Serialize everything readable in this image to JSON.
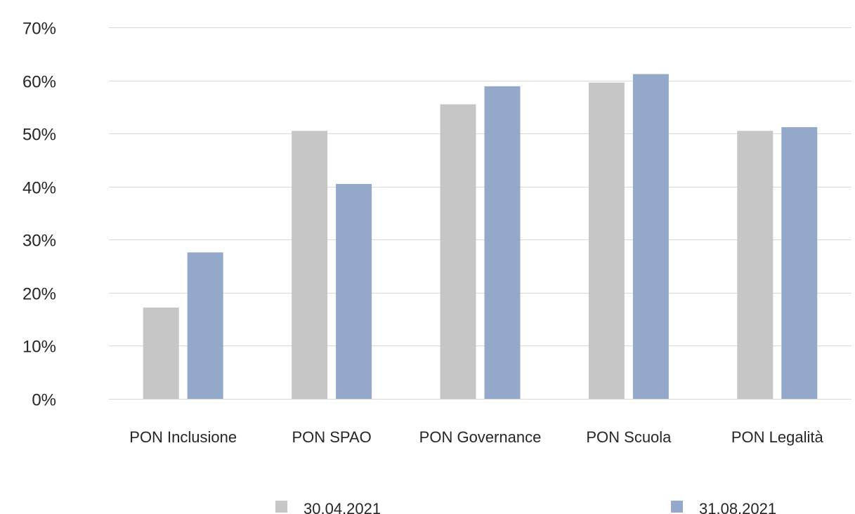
{
  "chart_data": {
    "type": "bar",
    "categories": [
      "PON Inclusione",
      "PON SPAO",
      "PON Governance",
      "PON Scuola",
      "PON Legalità"
    ],
    "series": [
      {
        "name": "30.04.2021",
        "color": "#c6c6c6",
        "values": [
          17.2,
          50.5,
          55.5,
          59.6,
          50.5
        ]
      },
      {
        "name": "31.08.2021",
        "color": "#94a8ca",
        "values": [
          27.6,
          40.5,
          58.9,
          61.2,
          51.2
        ]
      }
    ],
    "y_ticks": [
      "0%",
      "10%",
      "20%",
      "30%",
      "40%",
      "50%",
      "60%",
      "70%"
    ],
    "ylim": [
      0,
      70
    ],
    "y_unit": "%",
    "grid": true,
    "legend_position": "bottom"
  }
}
